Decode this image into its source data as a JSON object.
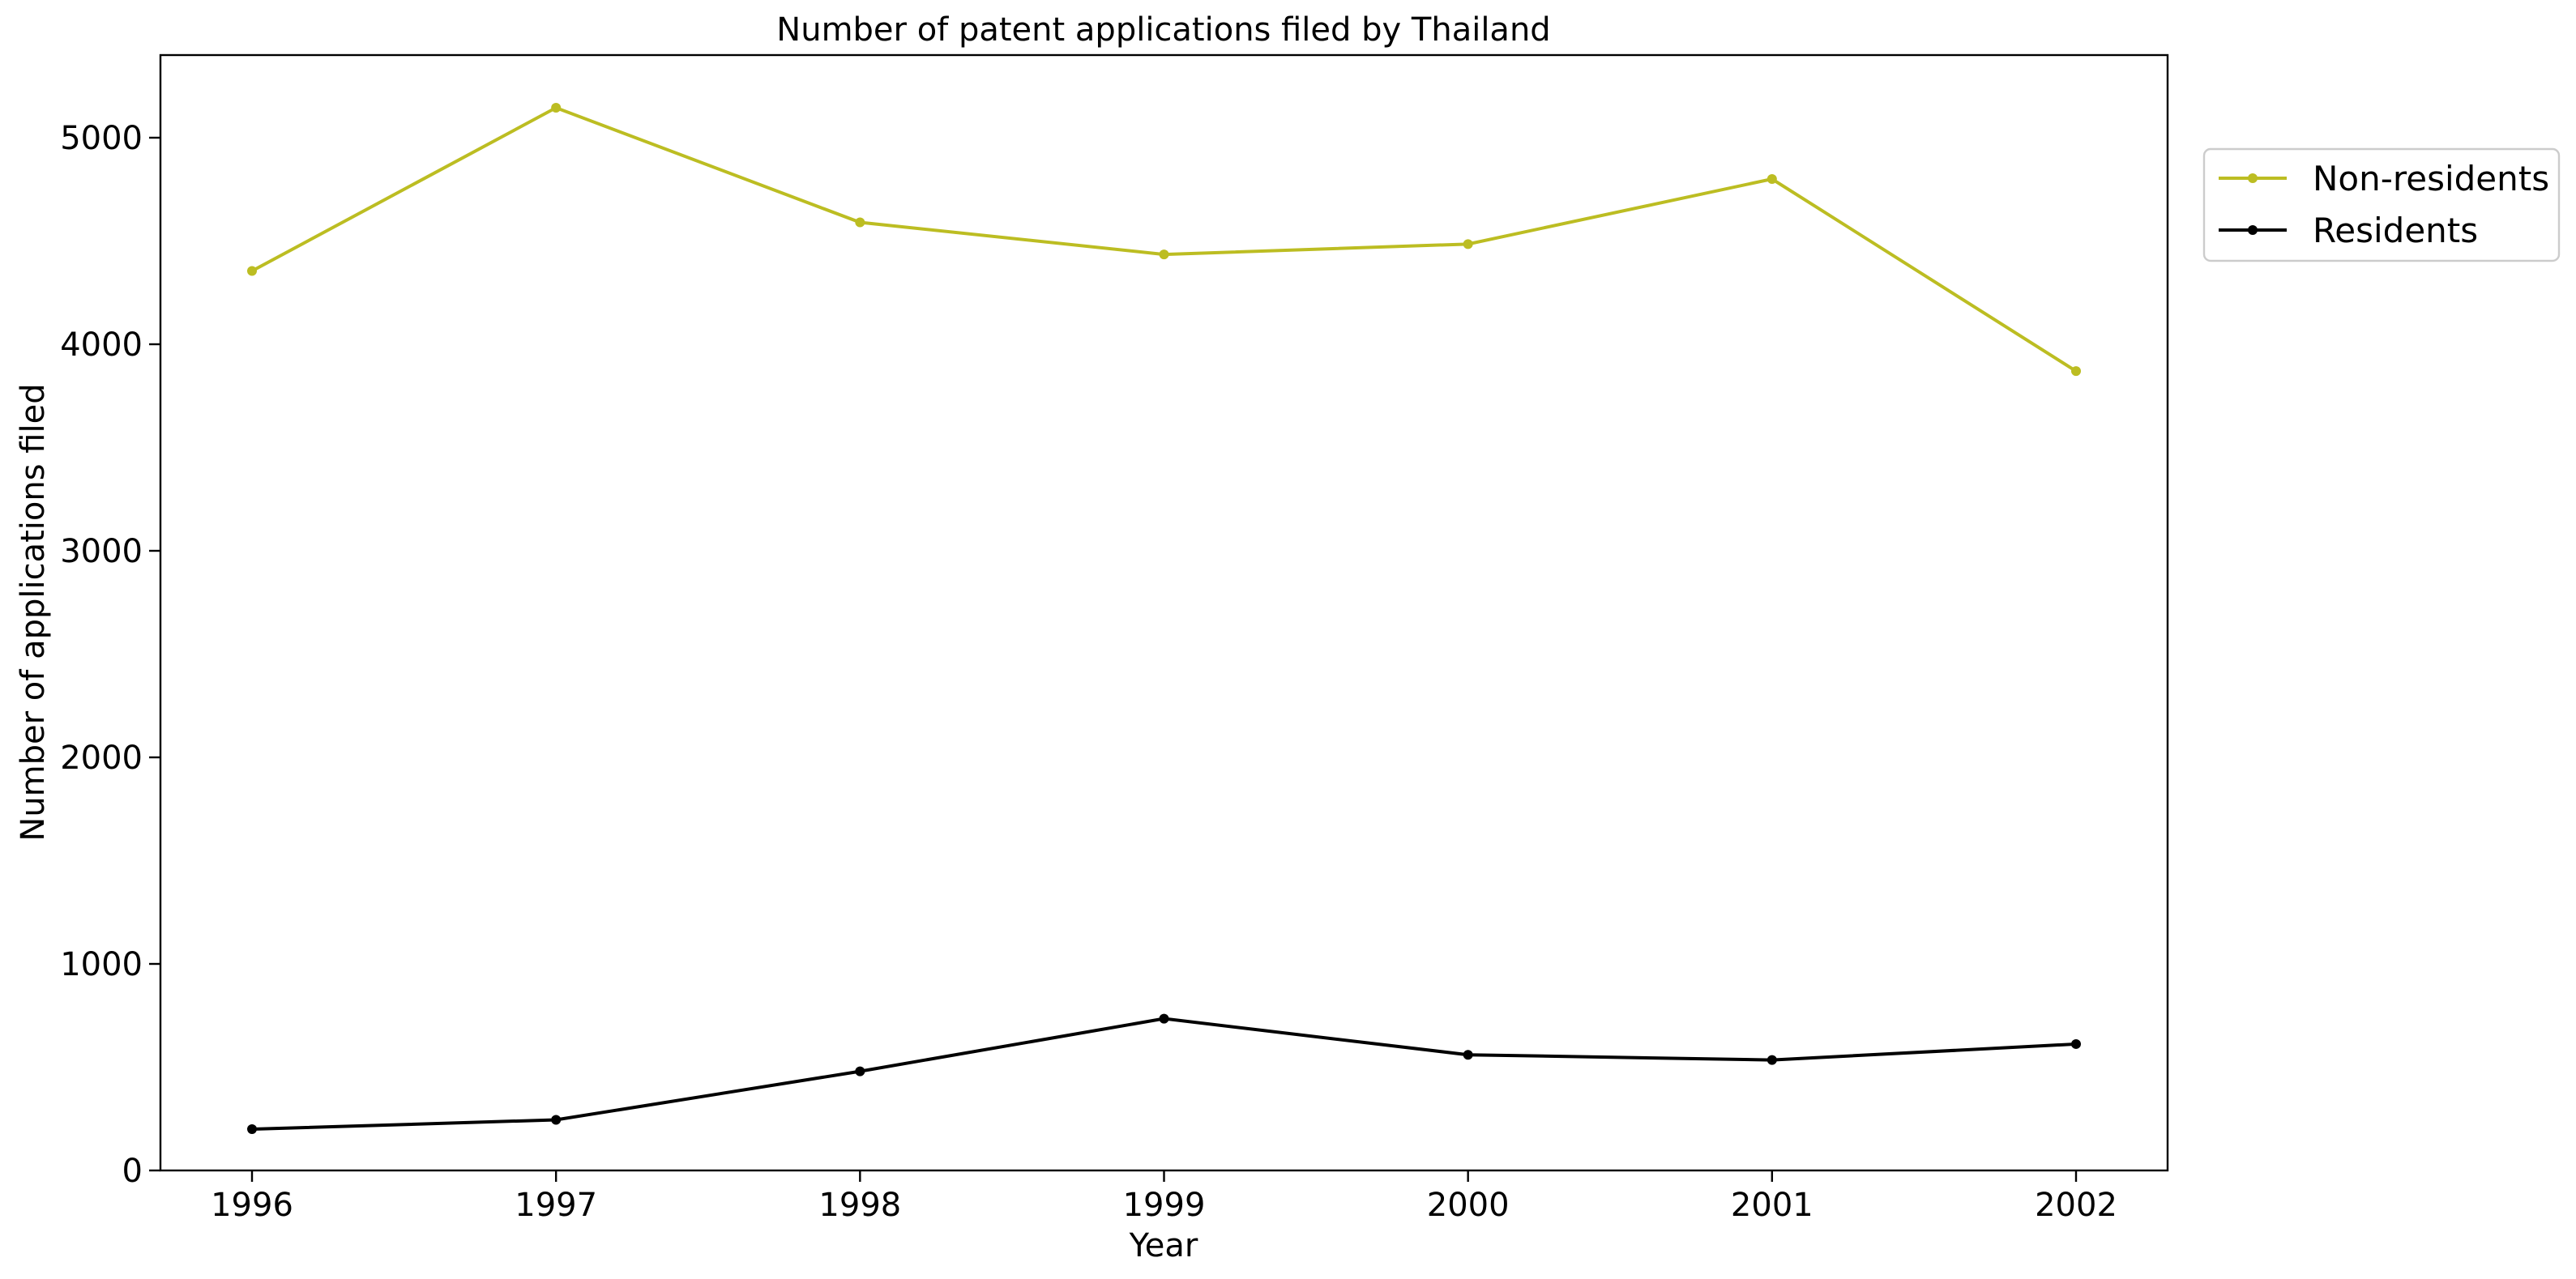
{
  "chart_data": {
    "type": "line",
    "title": "Number of patent applications filed by Thailand",
    "xlabel": "Year",
    "ylabel": "Number of applications filed",
    "x": [
      1996,
      1997,
      1998,
      1999,
      2000,
      2001,
      2002
    ],
    "x_tick_labels": [
      "1996",
      "1997",
      "1998",
      "1999",
      "2000",
      "2001",
      "2002"
    ],
    "ylim": [
      0,
      5400
    ],
    "y_ticks": [
      0,
      1000,
      2000,
      3000,
      4000,
      5000
    ],
    "y_tick_labels": [
      "0",
      "1000",
      "2000",
      "3000",
      "4000",
      "5000"
    ],
    "grid": false,
    "legend_position": "outside-top-right",
    "series": [
      {
        "name": "Non-residents",
        "color": "#bcbd22",
        "values": [
          4355,
          5145,
          4590,
          4435,
          4485,
          4800,
          3870
        ]
      },
      {
        "name": "Residents",
        "color": "#000000",
        "values": [
          200,
          245,
          480,
          735,
          560,
          535,
          612
        ]
      }
    ]
  }
}
